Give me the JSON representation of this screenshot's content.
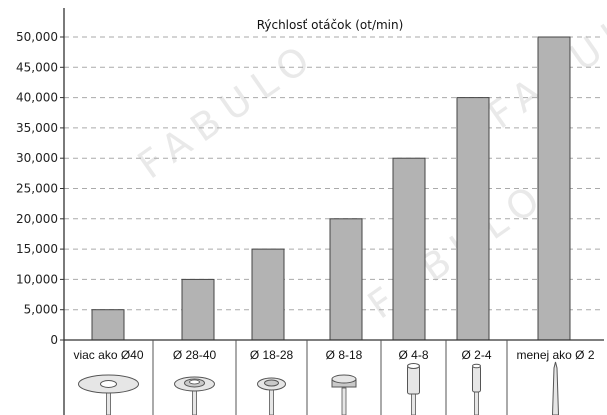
{
  "chart_data": {
    "type": "bar",
    "title": "Rýchlosť otáčok (ot/min)",
    "xlabel": "",
    "ylabel": "",
    "categories": [
      "viac ako Ø40",
      "Ø 28-40",
      "Ø 18-28",
      "Ø 8-18",
      "Ø 4-8",
      "Ø 2-4",
      "menej ako Ø 2"
    ],
    "values": [
      5000,
      10000,
      15000,
      20000,
      30000,
      40000,
      50000
    ],
    "ylim": [
      0,
      50000
    ],
    "yticks": [
      "0",
      "5,000",
      "10,000",
      "15,000",
      "20,000",
      "25,000",
      "30,000",
      "35,000",
      "40,000",
      "45,000",
      "50,000"
    ],
    "grid": true,
    "bar_color": "#b3b3b3",
    "bar_stroke": "#444444",
    "grid_color": "#aaaaaa",
    "tool_icons": [
      "large-disc-icon",
      "medium-disc-icon",
      "small-disc-icon",
      "cylinder-head-icon",
      "cylinder-bur-icon",
      "narrow-cylinder-bur-icon",
      "pointed-bur-icon"
    ]
  },
  "watermark": "FABULO"
}
